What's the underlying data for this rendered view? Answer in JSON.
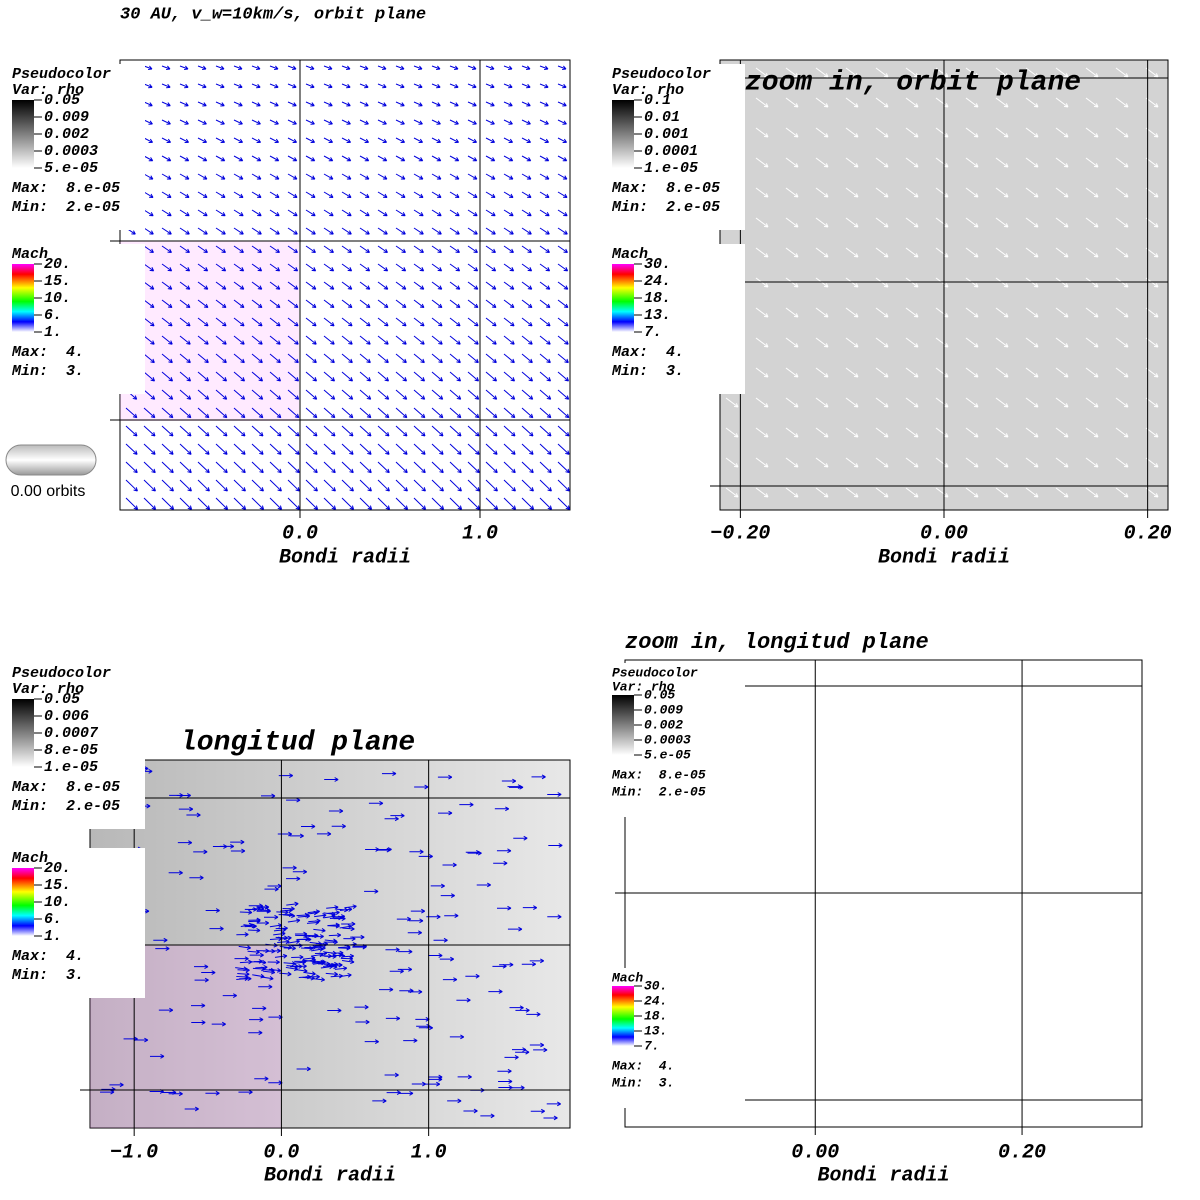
{
  "chart_data": [
    {
      "type": "vector",
      "title": "30 AU, v_w=10km/s, orbit plane",
      "xlabel": "Bondi radii",
      "xlim": [
        -1.0,
        1.5
      ],
      "xticks": [
        {
          "value": 0,
          "label": "0.0"
        },
        {
          "value": 1,
          "label": "1.0"
        }
      ],
      "legends": [
        {
          "title": "Pseudocolor",
          "var": "Var: rho",
          "labels": [
            "0.05",
            "0.009",
            "0.002",
            "0.0003",
            "5.e-05"
          ],
          "max": "Max:  8.e-05",
          "min": "Min:  2.e-05"
        },
        {
          "title": "Mach",
          "labels": [
            "20.",
            "15.",
            "10.",
            "6.",
            "1."
          ],
          "max": "Max:  4.",
          "min": "Min:  3."
        }
      ],
      "time": "0.00 orbits"
    },
    {
      "type": "vector",
      "title": "zoom in, orbit plane",
      "xlabel": "Bondi radii",
      "xlim": [
        -0.22,
        0.22
      ],
      "xticks": [
        {
          "value": -0.2,
          "label": "−0.20"
        },
        {
          "value": 0,
          "label": "0.00"
        },
        {
          "value": 0.2,
          "label": "0.20"
        }
      ],
      "legends": [
        {
          "title": "Pseudocolor",
          "var": "Var: rho",
          "labels": [
            "0.1",
            "0.01",
            "0.001",
            "0.0001",
            "1.e-05"
          ],
          "max": "Max:  8.e-05",
          "min": "Min:  2.e-05"
        },
        {
          "title": "Mach",
          "labels": [
            "30.",
            "24.",
            "18.",
            "13.",
            "7."
          ],
          "max": "Max:  4.",
          "min": "Min:  3."
        }
      ]
    },
    {
      "type": "vector",
      "title": "longitud plane",
      "xlabel": "Bondi radii",
      "xlim": [
        -1.3,
        1.96
      ],
      "xticks": [
        {
          "value": -1,
          "label": "−1.0"
        },
        {
          "value": 0,
          "label": "0.0"
        },
        {
          "value": 1,
          "label": "1.0"
        }
      ],
      "legends": [
        {
          "title": "Pseudocolor",
          "var": "Var: rho",
          "labels": [
            "0.05",
            "0.006",
            "0.0007",
            "8.e-05",
            "1.e-05"
          ],
          "max": "Max:  8.e-05",
          "min": "Min:  2.e-05"
        },
        {
          "title": "Mach",
          "labels": [
            "20.",
            "15.",
            "10.",
            "6.",
            "1."
          ],
          "max": "Max:  4.",
          "min": "Min:  3."
        }
      ]
    },
    {
      "type": "vector",
      "title": "zoom in, longitud plane",
      "xlabel": "Bondi radii",
      "xlim": [
        -0.184,
        0.316
      ],
      "xticks": [
        {
          "value": 0,
          "label": "0.00"
        },
        {
          "value": 0.2,
          "label": "0.20"
        }
      ],
      "legends": [
        {
          "title": "Pseudocolor",
          "var": "Var: rho",
          "labels": [
            "0.05",
            "0.009",
            "0.002",
            "0.0003",
            "5.e-05"
          ],
          "max": "Max:  8.e-05",
          "min": "Min:  2.e-05"
        },
        {
          "title": "Mach",
          "labels": [
            "30.",
            "24.",
            "18.",
            "13.",
            "7."
          ],
          "max": "Max:  4.",
          "min": "Min:  3."
        }
      ]
    }
  ]
}
